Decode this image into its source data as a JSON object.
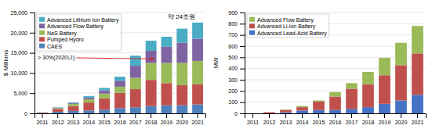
{
  "chart_data": [
    {
      "type": "bar",
      "stacked": true,
      "grid": true,
      "legend": "upper left",
      "ylabel": "$ Millions",
      "categories": [
        "2011",
        "2012",
        "2013",
        "2014",
        "2015",
        "2016",
        "2017",
        "2018",
        "2019",
        "2020",
        "2021"
      ],
      "series": [
        {
          "name": "CAES",
          "color": "#4f81bd",
          "values": [
            100,
            400,
            600,
            700,
            900,
            1300,
            1500,
            1800,
            2000,
            2000,
            2200
          ]
        },
        {
          "name": "Pumped Hydro",
          "color": "#c0504d",
          "values": [
            100,
            700,
            1200,
            2000,
            2800,
            3800,
            4500,
            6500,
            5500,
            5000,
            5000
          ]
        },
        {
          "name": "NaS Battery",
          "color": "#9bbb59",
          "values": [
            50,
            200,
            500,
            800,
            1200,
            1500,
            2800,
            4200,
            5000,
            5500,
            5800
          ]
        },
        {
          "name": "Advanced Flow Battery",
          "color": "#8064a2",
          "values": [
            20,
            100,
            200,
            400,
            800,
            1500,
            3000,
            3000,
            4000,
            5000,
            5500
          ]
        },
        {
          "name": "Advanced Lithium Ion Battery",
          "color": "#4bacc6",
          "values": [
            20,
            100,
            200,
            400,
            600,
            1000,
            2500,
            2500,
            2500,
            3500,
            4000
          ]
        }
      ],
      "ylim": [
        0,
        25000
      ],
      "yticks": [
        0,
        {
          "value": 5000,
          "label": "5,000"
        },
        {
          "value": 10000,
          "label": "10,000"
        },
        {
          "value": 15000,
          "label": "15,000"
        },
        {
          "value": 20000,
          "label": "20,000"
        },
        {
          "value": 25000,
          "label": "25,000"
        }
      ],
      "annotations": [
        "> 30%(2020년)",
        "약 24조원"
      ]
    },
    {
      "type": "bar",
      "stacked": true,
      "grid": true,
      "legend": "upper left",
      "ylabel": "MW",
      "categories": [
        "2011",
        "2012",
        "2013",
        "2014",
        "2015",
        "2016",
        "2017",
        "2018",
        "2019",
        "2020",
        "2021"
      ],
      "series": [
        {
          "name": "Advanced Lead-Acid Battery",
          "color": "#4472c4",
          "values": [
            0,
            0,
            10,
            25,
            30,
            30,
            40,
            55,
            85,
            115,
            165
          ]
        },
        {
          "name": "Advanced Li-ion Battery",
          "color": "#c0504d",
          "values": [
            0,
            10,
            20,
            30,
            75,
            120,
            180,
            205,
            255,
            315,
            370
          ]
        },
        {
          "name": "Advanced Flow Battery",
          "color": "#9bbb59",
          "values": [
            0,
            0,
            5,
            10,
            10,
            40,
            50,
            110,
            155,
            200,
            245
          ]
        }
      ],
      "ylim": [
        0,
        900
      ],
      "yticks": [
        0,
        100,
        200,
        300,
        400,
        500,
        600,
        700,
        800,
        900
      ]
    }
  ]
}
